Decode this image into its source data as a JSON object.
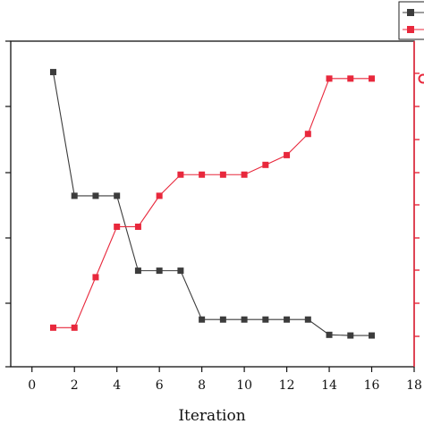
{
  "chart_data": {
    "type": "line",
    "xlabel": "Iteration",
    "xlim": [
      -1,
      18
    ],
    "xticks": [
      "0",
      "2",
      "4",
      "6",
      "8",
      "10",
      "12",
      "14",
      "16",
      "18"
    ],
    "grid": false,
    "legend": "top-right",
    "series": [
      {
        "axis": "left",
        "color": "#3c3c3c",
        "marker": "square",
        "x": [
          1,
          2,
          3,
          4,
          5,
          6,
          7,
          8,
          9,
          10,
          11,
          12,
          13,
          14,
          15,
          16
        ],
        "y": [
          0.905,
          0.525,
          0.525,
          0.525,
          0.295,
          0.295,
          0.295,
          0.145,
          0.145,
          0.145,
          0.145,
          0.145,
          0.145,
          0.098,
          0.096,
          0.096
        ]
      },
      {
        "axis": "right",
        "color": "#e8283c",
        "marker": "square",
        "x": [
          1,
          2,
          3,
          4,
          5,
          6,
          7,
          8,
          9,
          10,
          11,
          12,
          13,
          14,
          15,
          16
        ],
        "y": [
          0.12,
          0.12,
          0.275,
          0.43,
          0.43,
          0.525,
          0.59,
          0.59,
          0.59,
          0.59,
          0.62,
          0.65,
          0.715,
          0.885,
          0.885,
          0.885
        ]
      }
    ]
  }
}
